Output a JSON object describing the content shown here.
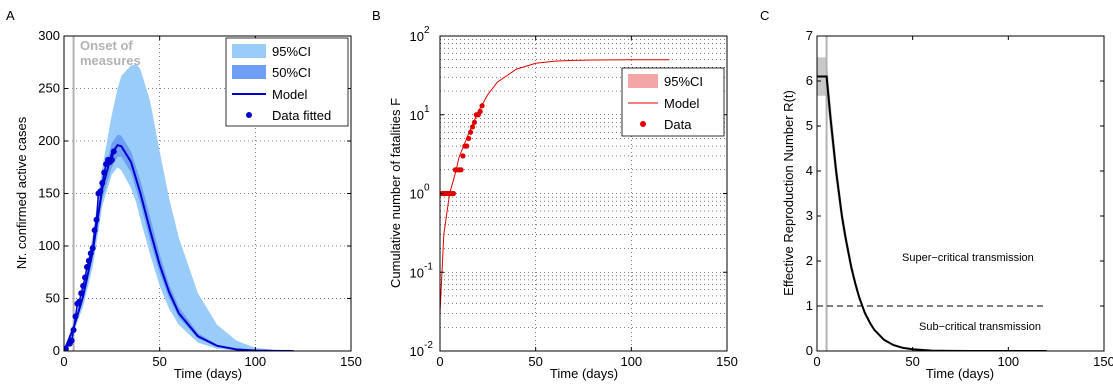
{
  "colors": {
    "ci95_blue": "#99ccf9",
    "ci50_blue": "#6d9ff5",
    "model_blue": "#0000cc",
    "ci95_red": "#f4a5a6",
    "model_red": "#e00000",
    "data_red": "#e00000",
    "onset_gray": "#b3b3b3",
    "ci_gray": "#c8c8c8"
  },
  "panels": {
    "a": {
      "letter": "A",
      "ylabel": "Nr. confirmed active cases",
      "xlabel": "Time (days)",
      "annotation_line1": "Onset of",
      "annotation_line2": "measures",
      "xticks": [
        "0",
        "50",
        "100",
        "150"
      ],
      "yticks": [
        "0",
        "50",
        "100",
        "150",
        "200",
        "250",
        "300"
      ],
      "legend": {
        "ci95": "95%CI",
        "ci50": "50%CI",
        "model": "Model",
        "data": "Data fitted"
      }
    },
    "b": {
      "letter": "B",
      "ylabel": "Cumulative number of fatalities F",
      "xlabel": "Time (days)",
      "xticks": [
        "0",
        "50",
        "100",
        "150"
      ],
      "ytick_base": "10",
      "ytick_exps": [
        "-2",
        "-1",
        "0",
        "1",
        "2"
      ],
      "legend": {
        "ci95": "95%CI",
        "model": "Model",
        "data": "Data"
      }
    },
    "c": {
      "letter": "C",
      "ylabel": "Effective Reproduction Number R(t)",
      "xlabel": "Time (days)",
      "super_label": "Super−critical transmission",
      "sub_label": "Sub−critical transmission",
      "xticks": [
        "0",
        "50",
        "100",
        "150"
      ],
      "yticks": [
        "0",
        "1",
        "2",
        "3",
        "4",
        "5",
        "6",
        "7"
      ]
    }
  },
  "chart_data": [
    {
      "type": "line",
      "panel": "A",
      "xlabel": "Time (days)",
      "ylabel": "Nr. confirmed active cases",
      "xlim": [
        0,
        150
      ],
      "ylim": [
        0,
        300
      ],
      "onset_day": 5,
      "model": {
        "x": [
          0,
          5,
          10,
          15,
          20,
          25,
          28,
          30,
          35,
          40,
          45,
          50,
          55,
          60,
          70,
          80,
          90,
          100,
          110,
          120
        ],
        "y": [
          0,
          22,
          52,
          95,
          155,
          188,
          196,
          195,
          180,
          150,
          115,
          82,
          56,
          36,
          14,
          5,
          1.5,
          0.5,
          0.1,
          0
        ]
      },
      "ci50": {
        "x": [
          0,
          5,
          10,
          15,
          20,
          25,
          28,
          30,
          35,
          40,
          45,
          50,
          55,
          60,
          70,
          80,
          90,
          100,
          110,
          120
        ],
        "lo": [
          0,
          20,
          48,
          88,
          145,
          175,
          185,
          185,
          170,
          140,
          105,
          74,
          50,
          32,
          12,
          4,
          1,
          0.3,
          0,
          0
        ],
        "hi": [
          0,
          24,
          56,
          102,
          165,
          198,
          206,
          205,
          190,
          162,
          128,
          92,
          63,
          42,
          17,
          6,
          2,
          0.6,
          0.1,
          0
        ]
      },
      "ci95": {
        "x": [
          0,
          5,
          10,
          15,
          20,
          25,
          28,
          30,
          35,
          38,
          40,
          45,
          50,
          55,
          60,
          70,
          80,
          90,
          100,
          110,
          120
        ],
        "lo": [
          0,
          18,
          42,
          80,
          138,
          168,
          175,
          172,
          155,
          140,
          125,
          92,
          62,
          40,
          25,
          8,
          2,
          0.5,
          0,
          0,
          0
        ],
        "hi": [
          0,
          28,
          62,
          110,
          175,
          225,
          250,
          262,
          272,
          273,
          268,
          238,
          190,
          145,
          108,
          55,
          25,
          10,
          3,
          1,
          0
        ]
      },
      "data": {
        "x": [
          1,
          3,
          4,
          5,
          6,
          7,
          8,
          9,
          10,
          11,
          12,
          13,
          14,
          15,
          16,
          17,
          18,
          19,
          20,
          21,
          22,
          23,
          24,
          25,
          26
        ],
        "y": [
          2,
          7,
          10,
          20,
          33,
          45,
          47,
          55,
          62,
          70,
          80,
          86,
          93,
          98,
          115,
          125,
          150,
          152,
          160,
          170,
          178,
          182,
          180,
          182,
          190
        ]
      }
    },
    {
      "type": "line",
      "panel": "B",
      "xlabel": "Time (days)",
      "ylabel": "Cumulative number of fatalities F",
      "xlim": [
        0,
        150
      ],
      "ylim": [
        0.01,
        100
      ],
      "yscale": "log",
      "model": {
        "x": [
          0,
          2,
          5,
          8,
          10,
          15,
          20,
          25,
          30,
          40,
          50,
          60,
          70,
          80,
          100,
          120
        ],
        "y": [
          0.03,
          0.3,
          1.0,
          1.8,
          2.9,
          5.8,
          11,
          18,
          26,
          38,
          45,
          48,
          49,
          49.5,
          50,
          50
        ]
      },
      "data": {
        "x": [
          1,
          2,
          3,
          4,
          5,
          6,
          7,
          8,
          9,
          10,
          11,
          12,
          13,
          14,
          15,
          16,
          17,
          18,
          19,
          20,
          21,
          22
        ],
        "y": [
          1,
          1,
          1,
          1,
          1,
          1,
          1,
          2,
          2,
          2,
          2,
          3,
          4,
          4,
          5,
          6,
          7,
          8,
          10,
          10,
          11,
          13
        ]
      }
    },
    {
      "type": "line",
      "panel": "C",
      "xlabel": "Time (days)",
      "ylabel": "Effective Reproduction Number R(t)",
      "xlim": [
        0,
        150
      ],
      "ylim": [
        0,
        7
      ],
      "onset_day": 5,
      "threshold": 1,
      "model": {
        "x": [
          0,
          5,
          7,
          10,
          13,
          15,
          18,
          20,
          22,
          25,
          28,
          30,
          35,
          40,
          45,
          50,
          60,
          70,
          80,
          100,
          120
        ],
        "y": [
          6.1,
          6.1,
          5.2,
          4.0,
          3.0,
          2.5,
          1.85,
          1.5,
          1.2,
          0.85,
          0.6,
          0.47,
          0.25,
          0.13,
          0.07,
          0.04,
          0.01,
          0.003,
          0.001,
          0,
          0
        ]
      },
      "ci_initial": {
        "x_range": [
          0,
          5
        ],
        "lo": 5.8,
        "hi": 6.4
      }
    }
  ]
}
